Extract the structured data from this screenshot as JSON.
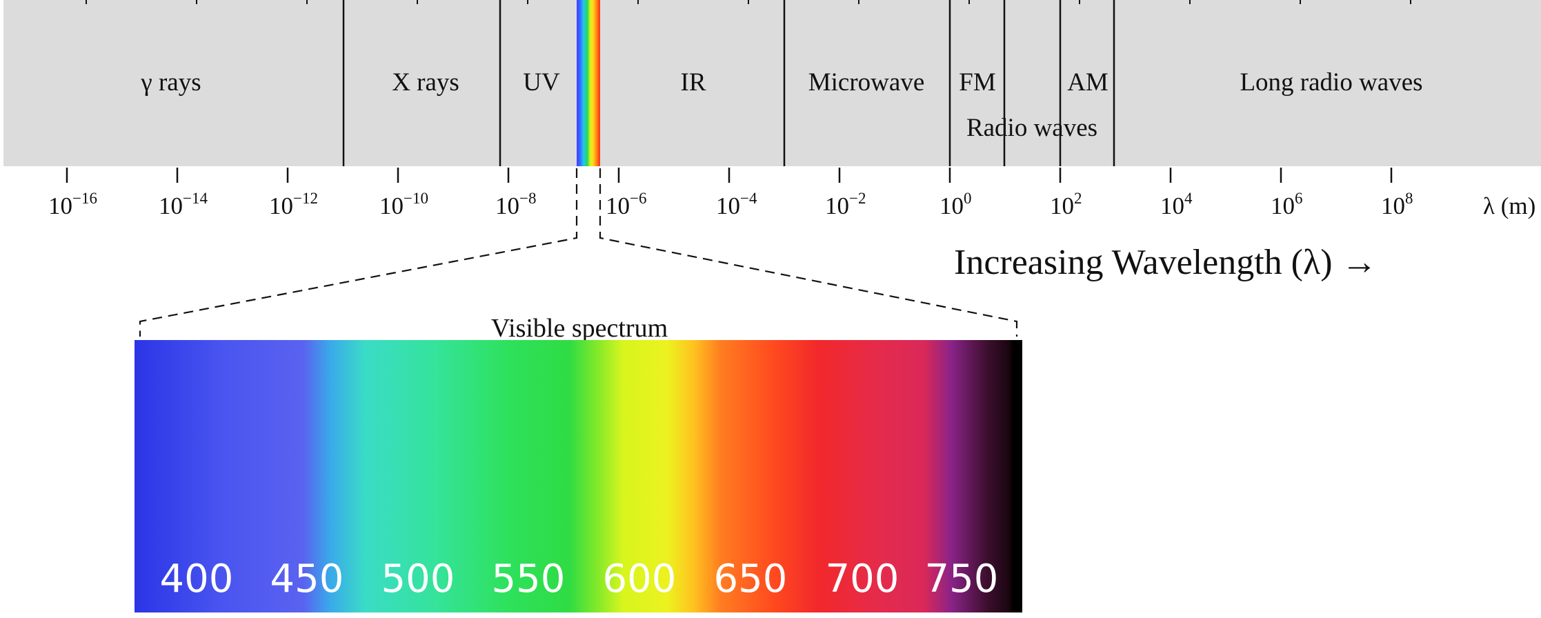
{
  "spectrum": {
    "bands": [
      {
        "label": "γ rays"
      },
      {
        "label": "X rays"
      },
      {
        "label": "UV"
      },
      {
        "label": "IR"
      },
      {
        "label": "Microwave"
      },
      {
        "label": "FM"
      },
      {
        "label": "AM"
      },
      {
        "label": "Radio waves"
      },
      {
        "label": "Long radio waves"
      }
    ],
    "visible_strip_colors": [
      "#4b3cff",
      "#2f6bff",
      "#27c4f0",
      "#22d85a",
      "#d9f21c",
      "#ffd81a",
      "#ff8a17",
      "#ff2a1a"
    ],
    "axis": {
      "ticks": [
        {
          "base": "10",
          "exp": "−16"
        },
        {
          "base": "10",
          "exp": "−14"
        },
        {
          "base": "10",
          "exp": "−12"
        },
        {
          "base": "10",
          "exp": "−10"
        },
        {
          "base": "10",
          "exp": "−8"
        },
        {
          "base": "10",
          "exp": "−6"
        },
        {
          "base": "10",
          "exp": "−4"
        },
        {
          "base": "10",
          "exp": "−2"
        },
        {
          "base": "10",
          "exp": "0"
        },
        {
          "base": "10",
          "exp": "2"
        },
        {
          "base": "10",
          "exp": "4"
        },
        {
          "base": "10",
          "exp": "6"
        },
        {
          "base": "10",
          "exp": "8"
        }
      ],
      "unit": "λ (m)"
    },
    "direction_caption": "Increasing Wavelength (λ) →"
  },
  "visible": {
    "title": "Visible spectrum",
    "labels": [
      "400",
      "450",
      "500",
      "550",
      "600",
      "650",
      "700",
      "750"
    ],
    "colors": {
      "violet_blue": "#2b35e6",
      "blue": "#5660f2",
      "cyan": "#3ad6c0",
      "green": "#2de050",
      "yellow": "#e6f51e",
      "orange": "#ff7a1c",
      "red": "#f02a2a",
      "crimson": "#e12a54",
      "purple": "#7a1e7a",
      "black": "#000000"
    }
  },
  "style": {
    "band_fill": "#dcdcdc",
    "line_color": "#111111"
  }
}
